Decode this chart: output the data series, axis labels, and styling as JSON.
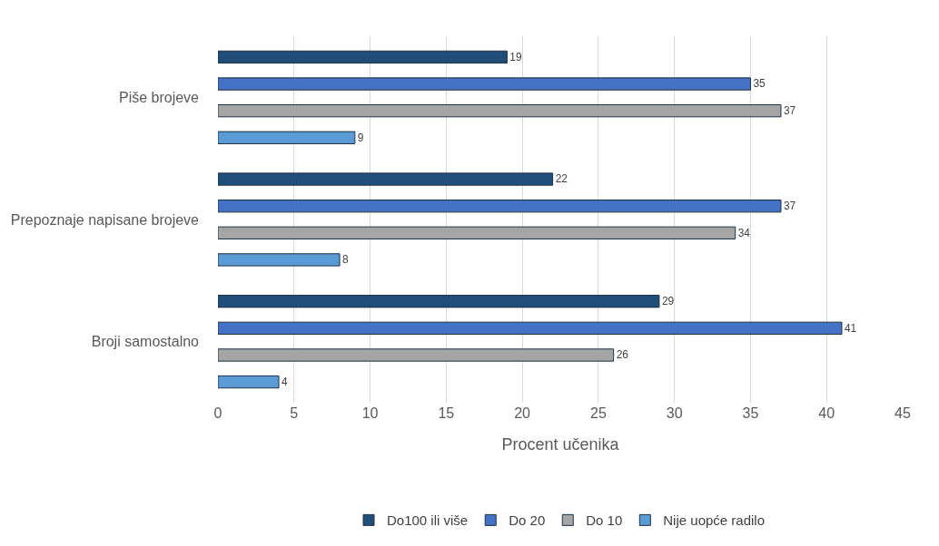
{
  "chart_data": {
    "type": "bar",
    "orientation": "horizontal",
    "xlabel": "Procent učenika",
    "categories": [
      "Piše brojeve",
      "Prepoznaje napisane brojeve",
      "Broji samostalno"
    ],
    "series": [
      {
        "name": "Do100 ili više",
        "color": "#1f4e79",
        "values": [
          19,
          22,
          29
        ]
      },
      {
        "name": "Do 20",
        "color": "#4472c4",
        "values": [
          35,
          37,
          41
        ]
      },
      {
        "name": "Do 10",
        "color": "#a5a5a5",
        "values": [
          37,
          34,
          26
        ]
      },
      {
        "name": "Nije uopće radilo",
        "color": "#5b9bd5",
        "values": [
          9,
          8,
          4
        ]
      }
    ],
    "xlim": [
      0,
      45
    ],
    "xticks": [
      0,
      5,
      10,
      15,
      20,
      25,
      30,
      35,
      40,
      45
    ],
    "grid": "x",
    "legend": "bottom",
    "data_labels": true
  }
}
